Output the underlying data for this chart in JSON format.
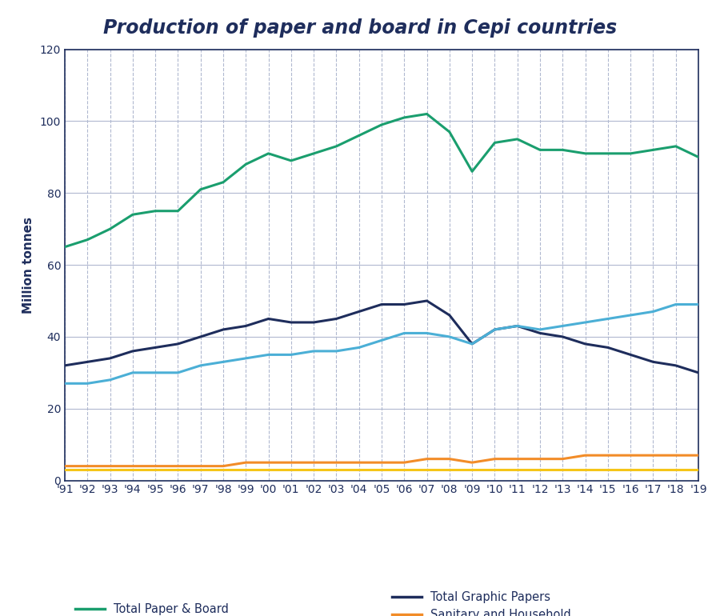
{
  "title": "Production of paper and board in Cepi countries",
  "ylabel": "Million tonnes",
  "years": [
    1991,
    1992,
    1993,
    1994,
    1995,
    1996,
    1997,
    1998,
    1999,
    2000,
    2001,
    2002,
    2003,
    2004,
    2005,
    2006,
    2007,
    2008,
    2009,
    2010,
    2011,
    2012,
    2013,
    2014,
    2015,
    2016,
    2017,
    2018,
    2019
  ],
  "total_paper_board": [
    65,
    67,
    70,
    74,
    75,
    75,
    81,
    83,
    88,
    91,
    89,
    91,
    93,
    96,
    99,
    101,
    102,
    97,
    86,
    94,
    95,
    92,
    92,
    91,
    91,
    91,
    92,
    93,
    90
  ],
  "total_graphic_papers": [
    32,
    33,
    34,
    36,
    37,
    38,
    40,
    42,
    43,
    45,
    44,
    44,
    45,
    47,
    49,
    49,
    50,
    46,
    38,
    42,
    43,
    41,
    40,
    38,
    37,
    35,
    33,
    32,
    30
  ],
  "total_packaging": [
    27,
    27,
    28,
    30,
    30,
    30,
    32,
    33,
    34,
    35,
    35,
    36,
    36,
    37,
    39,
    41,
    41,
    40,
    38,
    42,
    43,
    42,
    43,
    44,
    45,
    46,
    47,
    49,
    49
  ],
  "sanitary_household": [
    4,
    4,
    4,
    4,
    4,
    4,
    4,
    4,
    5,
    5,
    5,
    5,
    5,
    5,
    5,
    5,
    6,
    6,
    5,
    6,
    6,
    6,
    6,
    7,
    7,
    7,
    7,
    7,
    7
  ],
  "other_paper_board": [
    3,
    3,
    3,
    3,
    3,
    3,
    3,
    3,
    3,
    3,
    3,
    3,
    3,
    3,
    3,
    3,
    3,
    3,
    3,
    3,
    3,
    3,
    3,
    3,
    3,
    3,
    3,
    3,
    3
  ],
  "colors": {
    "total_paper_board": "#1a9e6e",
    "total_graphic_papers": "#1e2d5c",
    "total_packaging": "#4bafd6",
    "sanitary_household": "#f28c28",
    "other_paper_board": "#f5c518"
  },
  "ylim": [
    0,
    120
  ],
  "yticks": [
    0,
    20,
    40,
    60,
    80,
    100,
    120
  ],
  "title_color": "#1e2d5c",
  "axis_color": "#1e2d5c",
  "grid_color": "#b0b8d0",
  "background_color": "#ffffff"
}
